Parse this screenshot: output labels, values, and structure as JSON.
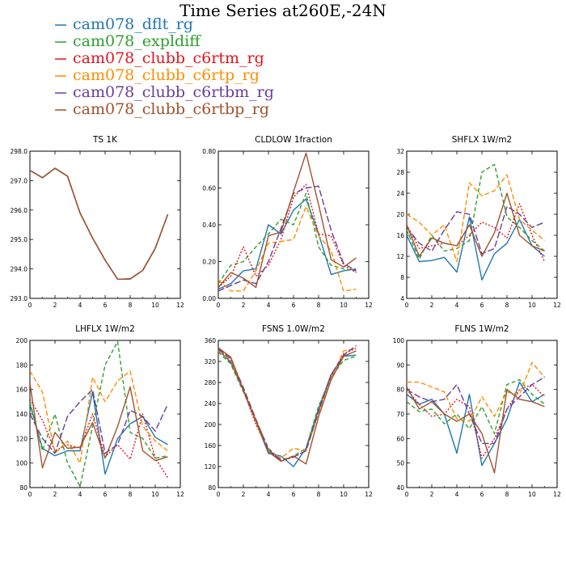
{
  "title": "Time Series at260E,-24N",
  "colors": {
    "cam078_dflt_rg": "#1f77b4",
    "cam078_expldiff": "#2ca02c",
    "cam078_clubb_c6rtm_rg": "#e4141c",
    "cam078_clubb_c6rtp_rg": "#ff8c00",
    "cam078_clubb_c6rtbm_rg": "#6a3d9a",
    "cam078_clubb_c6rtbp_rg": "#a0522d"
  },
  "legend": [
    {
      "name": "cam078_dflt_rg",
      "color": "#1f77b4",
      "dash": ""
    },
    {
      "name": "cam078_expldiff",
      "color": "#2ca02c",
      "dash": "5,3"
    },
    {
      "name": "cam078_clubb_c6rtm_rg",
      "color": "#e4141c",
      "dash": "2,2"
    },
    {
      "name": "cam078_clubb_c6rtp_rg",
      "color": "#ff8c00",
      "dash": "6,3"
    },
    {
      "name": "cam078_clubb_c6rtbm_rg",
      "color": "#6a3d9a",
      "dash": "8,3"
    },
    {
      "name": "cam078_clubb_c6rtbp_rg",
      "color": "#a0522d",
      "dash": ""
    }
  ],
  "chart_data": [
    {
      "type": "line",
      "title": "TS   1K",
      "x": [
        0,
        1,
        2,
        3,
        4,
        5,
        6,
        7,
        8,
        9,
        10,
        11
      ],
      "xlim": [
        0,
        12
      ],
      "xticks": [
        0,
        2,
        4,
        6,
        8,
        10,
        12
      ],
      "xtick_labels": [
        "0",
        "2",
        "4",
        "6",
        "8",
        "10",
        "12"
      ],
      "ylim": [
        293,
        298
      ],
      "yticks": [
        293,
        294,
        295,
        296,
        297,
        298
      ],
      "ytick_labels": [
        "293.0",
        "294.0",
        "295.0",
        "296.0",
        "297.0",
        "298.0"
      ],
      "series": [
        {
          "name": "cam078_dflt_rg",
          "values": [
            297.35,
            297.1,
            297.42,
            297.15,
            295.9,
            295.05,
            294.3,
            293.65,
            293.66,
            293.95,
            294.7,
            295.85
          ]
        },
        {
          "name": "cam078_expldiff",
          "values": [
            297.35,
            297.1,
            297.42,
            297.15,
            295.9,
            295.05,
            294.3,
            293.65,
            293.66,
            293.95,
            294.7,
            295.85
          ]
        },
        {
          "name": "cam078_clubb_c6rtm_rg",
          "values": [
            297.35,
            297.1,
            297.42,
            297.15,
            295.9,
            295.05,
            294.3,
            293.65,
            293.66,
            293.95,
            294.7,
            295.85
          ]
        },
        {
          "name": "cam078_clubb_c6rtp_rg",
          "values": [
            297.35,
            297.1,
            297.42,
            297.15,
            295.9,
            295.05,
            294.3,
            293.65,
            293.66,
            293.95,
            294.7,
            295.85
          ]
        },
        {
          "name": "cam078_clubb_c6rtbm_rg",
          "values": [
            297.35,
            297.1,
            297.42,
            297.15,
            295.9,
            295.05,
            294.3,
            293.65,
            293.66,
            293.95,
            294.7,
            295.85
          ]
        },
        {
          "name": "cam078_clubb_c6rtbp_rg",
          "values": [
            297.35,
            297.1,
            297.42,
            297.15,
            295.9,
            295.05,
            294.3,
            293.65,
            293.66,
            293.95,
            294.7,
            295.85
          ]
        }
      ]
    },
    {
      "type": "line",
      "title": "CLDLOW   1fraction",
      "x": [
        0,
        1,
        2,
        3,
        4,
        5,
        6,
        7,
        8,
        9,
        10,
        11
      ],
      "xlim": [
        0,
        12
      ],
      "xticks": [
        0,
        2,
        4,
        6,
        8,
        10,
        12
      ],
      "xtick_labels": [
        "0",
        "2",
        "4",
        "6",
        "8",
        "10",
        "12"
      ],
      "ylim": [
        0,
        0.8
      ],
      "yticks": [
        0,
        0.2,
        0.4,
        0.6,
        0.8
      ],
      "ytick_labels": [
        "0.00",
        "0.20",
        "0.40",
        "0.60",
        "0.80"
      ],
      "series": [
        {
          "name": "cam078_dflt_rg",
          "values": [
            0.05,
            0.08,
            0.15,
            0.16,
            0.4,
            0.35,
            0.48,
            0.54,
            0.35,
            0.13,
            0.15,
            0.16
          ]
        },
        {
          "name": "cam078_expldiff",
          "values": [
            0.08,
            0.18,
            0.2,
            0.28,
            0.35,
            0.43,
            0.4,
            0.57,
            0.28,
            0.18,
            0.16,
            0.15
          ]
        },
        {
          "name": "cam078_clubb_c6rtm_rg",
          "values": [
            0.06,
            0.12,
            0.28,
            0.12,
            0.18,
            0.32,
            0.55,
            0.62,
            0.35,
            0.34,
            0.18,
            0.14
          ]
        },
        {
          "name": "cam078_clubb_c6rtp_rg",
          "values": [
            0.1,
            0.04,
            0.04,
            0.15,
            0.3,
            0.31,
            0.32,
            0.5,
            0.34,
            0.26,
            0.04,
            0.05
          ]
        },
        {
          "name": "cam078_clubb_c6rtbm_rg",
          "values": [
            0.04,
            0.07,
            0.1,
            0.08,
            0.2,
            0.38,
            0.57,
            0.6,
            0.61,
            0.37,
            0.19,
            0.15
          ]
        },
        {
          "name": "cam078_clubb_c6rtbp_rg",
          "values": [
            0.06,
            0.14,
            0.11,
            0.06,
            0.34,
            0.36,
            0.58,
            0.79,
            0.51,
            0.21,
            0.17,
            0.22
          ]
        }
      ]
    },
    {
      "type": "line",
      "title": "SHFLX   1W/m2",
      "x": [
        0,
        1,
        2,
        3,
        4,
        5,
        6,
        7,
        8,
        9,
        10,
        11
      ],
      "xlim": [
        0,
        12
      ],
      "xticks": [
        0,
        2,
        4,
        6,
        8,
        10,
        12
      ],
      "xtick_labels": [
        "0",
        "2",
        "4",
        "6",
        "8",
        "10",
        "12"
      ],
      "ylim": [
        4,
        32
      ],
      "yticks": [
        4,
        8,
        12,
        16,
        20,
        24,
        28,
        32
      ],
      "ytick_labels": [
        "4",
        "8",
        "12",
        "16",
        "20",
        "24",
        "28",
        "32"
      ],
      "series": [
        {
          "name": "cam078_dflt_rg",
          "values": [
            16,
            11,
            11.2,
            11.8,
            9,
            19.5,
            7.5,
            12.5,
            14.5,
            19,
            14,
            12
          ]
        },
        {
          "name": "cam078_expldiff",
          "values": [
            17,
            11.5,
            16,
            13,
            13.5,
            15,
            28,
            29.5,
            19.5,
            17.5,
            15,
            13
          ]
        },
        {
          "name": "cam078_clubb_c6rtm_rg",
          "values": [
            18,
            13.5,
            14,
            14.5,
            14,
            16,
            18.5,
            17.5,
            15.5,
            22,
            16,
            11
          ]
        },
        {
          "name": "cam078_clubb_c6rtp_rg",
          "values": [
            20,
            18.5,
            16,
            18,
            11,
            26,
            23.5,
            24.5,
            27.5,
            19,
            17,
            15
          ]
        },
        {
          "name": "cam078_clubb_c6rtbm_rg",
          "values": [
            17.5,
            14.5,
            13,
            17,
            20.5,
            20,
            12.5,
            13.5,
            21.5,
            20,
            17.5,
            18.5
          ]
        },
        {
          "name": "cam078_clubb_c6rtbp_rg",
          "values": [
            18,
            12,
            15.5,
            14.5,
            14,
            18,
            12,
            16.5,
            24,
            16,
            14,
            13
          ]
        }
      ]
    },
    {
      "type": "line",
      "title": "LHFLX   1W/m2",
      "x": [
        0,
        1,
        2,
        3,
        4,
        5,
        6,
        7,
        8,
        9,
        10,
        11
      ],
      "xlim": [
        0,
        12
      ],
      "xticks": [
        0,
        2,
        4,
        6,
        8,
        10,
        12
      ],
      "xtick_labels": [
        "0",
        "2",
        "4",
        "6",
        "8",
        "10",
        "12"
      ],
      "ylim": [
        80,
        200
      ],
      "yticks": [
        80,
        100,
        120,
        140,
        160,
        180,
        200
      ],
      "ytick_labels": [
        "80",
        "100",
        "120",
        "140",
        "160",
        "180",
        "200"
      ],
      "series": [
        {
          "name": "cam078_dflt_rg",
          "values": [
            148,
            112,
            106,
            110,
            110,
            158,
            91,
            120,
            132,
            138,
            121,
            115
          ]
        },
        {
          "name": "cam078_expldiff",
          "values": [
            150,
            110,
            140,
            100,
            81,
            130,
            180,
            199,
            125,
            120,
            104,
            106
          ]
        },
        {
          "name": "cam078_clubb_c6rtm_rg",
          "values": [
            152,
            135,
            110,
            115,
            112,
            140,
            105,
            115,
            103,
            140,
            104,
            88
          ]
        },
        {
          "name": "cam078_clubb_c6rtp_rg",
          "values": [
            175,
            158,
            108,
            118,
            100,
            170,
            150,
            167,
            175,
            130,
            118,
            110
          ]
        },
        {
          "name": "cam078_clubb_c6rtbm_rg",
          "values": [
            140,
            120,
            108,
            138,
            150,
            160,
            108,
            115,
            143,
            138,
            126,
            148
          ]
        },
        {
          "name": "cam078_clubb_c6rtbp_rg",
          "values": [
            165,
            96,
            125,
            112,
            113,
            133,
            104,
            130,
            162,
            110,
            102,
            105
          ]
        }
      ]
    },
    {
      "type": "line",
      "title": "FSNS   1.0W/m2",
      "x": [
        0,
        1,
        2,
        3,
        4,
        5,
        6,
        7,
        8,
        9,
        10,
        11
      ],
      "xlim": [
        0,
        12
      ],
      "xticks": [
        0,
        2,
        4,
        6,
        8,
        10,
        12
      ],
      "xtick_labels": [
        "0",
        "2",
        "4",
        "6",
        "8",
        "10",
        "12"
      ],
      "ylim": [
        80,
        360
      ],
      "yticks": [
        80,
        120,
        160,
        200,
        240,
        280,
        320,
        360
      ],
      "ytick_labels": [
        "80",
        "120",
        "160",
        "200",
        "240",
        "280",
        "320",
        "360"
      ],
      "series": [
        {
          "name": "cam078_dflt_rg",
          "values": [
            342,
            318,
            265,
            205,
            145,
            140,
            120,
            155,
            230,
            295,
            330,
            332
          ]
        },
        {
          "name": "cam078_expldiff",
          "values": [
            338,
            315,
            262,
            208,
            155,
            132,
            140,
            155,
            235,
            290,
            322,
            330
          ]
        },
        {
          "name": "cam078_clubb_c6rtm_rg",
          "values": [
            345,
            320,
            265,
            200,
            152,
            130,
            138,
            150,
            225,
            292,
            335,
            345
          ]
        },
        {
          "name": "cam078_clubb_c6rtp_rg",
          "values": [
            340,
            322,
            268,
            205,
            150,
            136,
            155,
            150,
            222,
            288,
            340,
            345
          ]
        },
        {
          "name": "cam078_clubb_c6rtbm_rg",
          "values": [
            344,
            325,
            270,
            210,
            152,
            132,
            138,
            150,
            225,
            295,
            332,
            350
          ]
        },
        {
          "name": "cam078_clubb_c6rtbp_rg",
          "values": [
            346,
            328,
            265,
            208,
            148,
            130,
            140,
            125,
            215,
            285,
            330,
            340
          ]
        }
      ]
    },
    {
      "type": "line",
      "title": "FLNS   1W/m2",
      "x": [
        0,
        1,
        2,
        3,
        4,
        5,
        6,
        7,
        8,
        9,
        10,
        11
      ],
      "xlim": [
        0,
        12
      ],
      "xticks": [
        0,
        2,
        4,
        6,
        8,
        10,
        12
      ],
      "xtick_labels": [
        "0",
        "2",
        "4",
        "6",
        "8",
        "10",
        "12"
      ],
      "ylim": [
        40,
        100
      ],
      "yticks": [
        40,
        50,
        60,
        70,
        80,
        90,
        100
      ],
      "ytick_labels": [
        "40",
        "50",
        "60",
        "70",
        "80",
        "90",
        "100"
      ],
      "series": [
        {
          "name": "cam078_dflt_rg",
          "values": [
            78,
            74,
            76,
            70,
            54,
            78,
            49,
            58,
            68,
            83,
            75,
            78
          ]
        },
        {
          "name": "cam078_expldiff",
          "values": [
            75,
            71,
            72,
            66,
            70,
            64,
            73,
            62,
            82,
            84,
            78,
            74
          ]
        },
        {
          "name": "cam078_clubb_c6rtm_rg",
          "values": [
            80,
            74,
            69,
            70,
            76,
            73,
            52,
            60,
            72,
            80,
            82,
            77
          ]
        },
        {
          "name": "cam078_clubb_c6rtp_rg",
          "values": [
            83,
            83,
            81,
            79,
            68,
            67,
            77,
            69,
            79,
            78,
            91,
            85
          ]
        },
        {
          "name": "cam078_clubb_c6rtbm_rg",
          "values": [
            80,
            77,
            75,
            76,
            82,
            70,
            58,
            58,
            72,
            77,
            82,
            85
          ]
        },
        {
          "name": "cam078_clubb_c6rtbp_rg",
          "values": [
            81,
            72,
            75,
            70,
            67,
            70,
            62,
            46,
            80,
            76,
            75,
            73
          ]
        }
      ]
    }
  ]
}
